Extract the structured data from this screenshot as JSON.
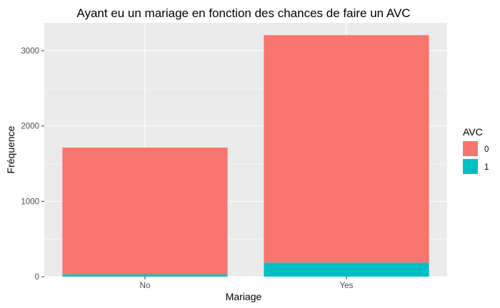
{
  "chart_data": {
    "type": "bar",
    "stacked": true,
    "title": "Ayant eu un mariage en fonction des chances de faire un AVC",
    "xlabel": "Mariage",
    "ylabel": "Fréquence",
    "categories": [
      "No",
      "Yes"
    ],
    "series": [
      {
        "name": "0",
        "values": [
          1685,
          3020
        ],
        "color": "#F8766D"
      },
      {
        "name": "1",
        "values": [
          29,
          186
        ],
        "color": "#00BFC4"
      }
    ],
    "ylim": [
      0,
      3370
    ],
    "y_ticks": [
      0,
      1000,
      2000,
      3000
    ],
    "legend": {
      "title": "AVC",
      "position": "right"
    },
    "grid": true,
    "panel_background": "#EBEBEB"
  }
}
